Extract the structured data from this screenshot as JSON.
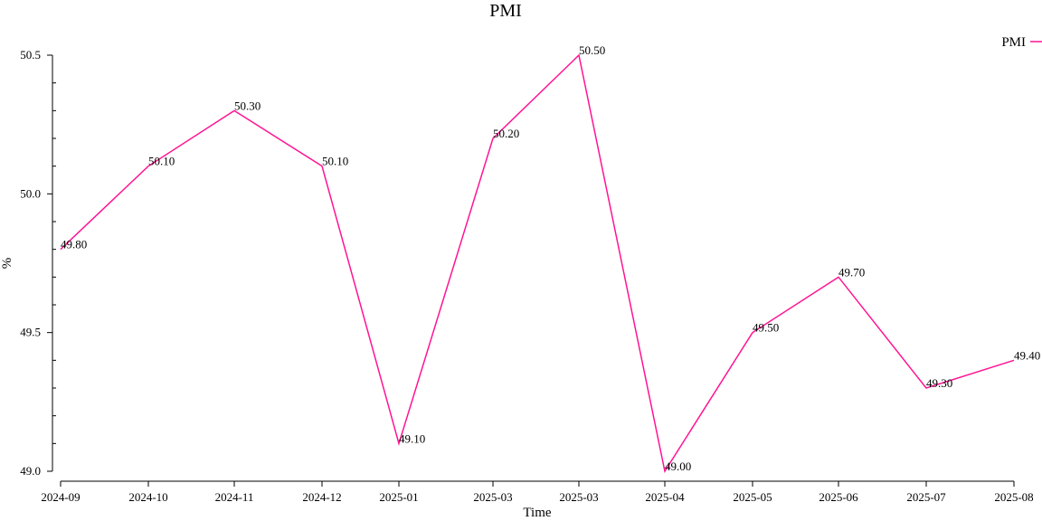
{
  "chart_data": {
    "type": "line",
    "title": "PMI",
    "xlabel": "Time",
    "ylabel": "%",
    "x": [
      "2024-09",
      "2024-10",
      "2024-11",
      "2024-12",
      "2025-01",
      "2025-03",
      "2025-03",
      "2025-04",
      "2025-05",
      "2025-06",
      "2025-07",
      "2025-08"
    ],
    "series": [
      {
        "name": "PMI",
        "values": [
          49.8,
          50.1,
          50.3,
          50.1,
          49.1,
          50.2,
          50.5,
          49.0,
          49.5,
          49.7,
          49.3,
          49.4
        ],
        "labels": [
          "49.80",
          "50.10",
          "50.30",
          "50.10",
          "49.10",
          "50.20",
          "50.50",
          "49.00",
          "49.50",
          "49.70",
          "49.30",
          "49.40"
        ],
        "color": "#ff1493"
      }
    ],
    "ylim": [
      49.0,
      50.5
    ],
    "y_ticks": [
      "49.0",
      "49.5",
      "50.0",
      "50.5"
    ],
    "grid": false,
    "legend_position": "top-right"
  }
}
